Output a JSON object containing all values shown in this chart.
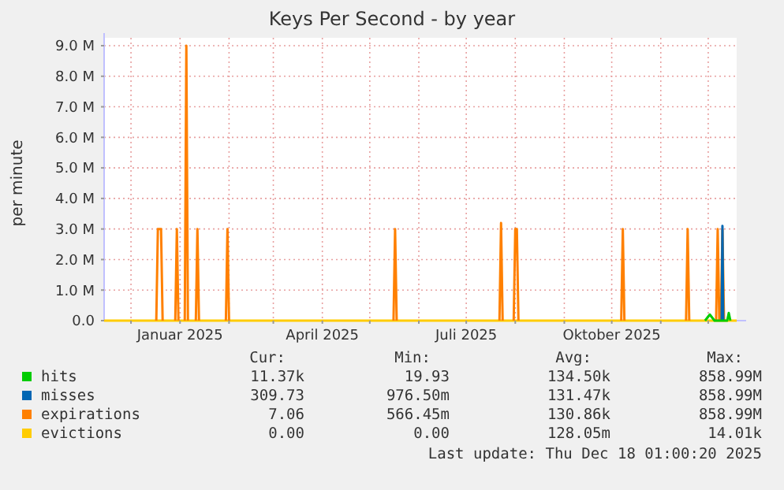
{
  "chart_data": {
    "type": "line",
    "title": "Keys Per Second - by year",
    "ylabel": "per minute",
    "xlim": [
      "2024-11-14",
      "2025-12-19"
    ],
    "xticks": [
      {
        "value": "2024-12-01",
        "label": null
      },
      {
        "value": "2025-01-01",
        "label": "Januar 2025"
      },
      {
        "value": "2025-02-01",
        "label": null
      },
      {
        "value": "2025-03-01",
        "label": null
      },
      {
        "value": "2025-04-01",
        "label": "April 2025"
      },
      {
        "value": "2025-05-01",
        "label": null
      },
      {
        "value": "2025-06-01",
        "label": null
      },
      {
        "value": "2025-07-01",
        "label": "Juli 2025"
      },
      {
        "value": "2025-08-01",
        "label": null
      },
      {
        "value": "2025-09-01",
        "label": null
      },
      {
        "value": "2025-10-01",
        "label": "Oktober 2025"
      },
      {
        "value": "2025-11-01",
        "label": null
      },
      {
        "value": "2025-12-01",
        "label": null
      }
    ],
    "ylim": [
      0,
      9000000
    ],
    "yticks": [
      {
        "value": 0,
        "label": "0.0"
      },
      {
        "value": 1000000,
        "label": "1.0 M"
      },
      {
        "value": 2000000,
        "label": "2.0 M"
      },
      {
        "value": 3000000,
        "label": "3.0 M"
      },
      {
        "value": 4000000,
        "label": "4.0 M"
      },
      {
        "value": 5000000,
        "label": "5.0 M"
      },
      {
        "value": 6000000,
        "label": "6.0 M"
      },
      {
        "value": 7000000,
        "label": "7.0 M"
      },
      {
        "value": 8000000,
        "label": "8.0 M"
      },
      {
        "value": 9000000,
        "label": "9.0 M"
      }
    ],
    "grid": true,
    "legend": "bottom",
    "series": [
      {
        "name": "hits",
        "color": "#00cc00",
        "x": [
          "2025-11-29",
          "2025-12-02",
          "2025-12-05",
          "2025-12-13",
          "2025-12-14",
          "2025-12-15"
        ],
        "values": [
          0,
          200000,
          0,
          0,
          250000,
          0
        ]
      },
      {
        "name": "misses",
        "color": "#0066b3",
        "x": [
          "2025-12-09T12:00",
          "2025-12-10",
          "2025-12-10T12:00"
        ],
        "values": [
          0,
          3100000,
          0
        ]
      },
      {
        "name": "expirations",
        "color": "#ff8000",
        "x": [
          "2024-12-17",
          "2024-12-18",
          "2024-12-20",
          "2024-12-21",
          "2024-12-25",
          "2024-12-29",
          "2024-12-30",
          "2024-12-31",
          "2025-01-02",
          "2025-01-04",
          "2025-01-05",
          "2025-01-06",
          "2025-01-08",
          "2025-01-11",
          "2025-01-12",
          "2025-01-13",
          "2025-01-20",
          "2025-01-30",
          "2025-01-31",
          "2025-02-01",
          "2025-03-01",
          "2025-05-16",
          "2025-05-17",
          "2025-05-18",
          "2025-06-01",
          "2025-07-22",
          "2025-07-23",
          "2025-07-24",
          "2025-07-28",
          "2025-07-31",
          "2025-08-01",
          "2025-08-02",
          "2025-08-03",
          "2025-09-01",
          "2025-10-07",
          "2025-10-08",
          "2025-10-09",
          "2025-11-01",
          "2025-11-17",
          "2025-11-18",
          "2025-11-19",
          "2025-11-25",
          "2025-12-06",
          "2025-12-07",
          "2025-12-08",
          "2025-12-08T12:00",
          "2025-12-09",
          "2025-12-10",
          "2025-12-11"
        ],
        "values": [
          0,
          3000000,
          3000000,
          0,
          null,
          0,
          3000000,
          0,
          null,
          0,
          9000000,
          0,
          null,
          0,
          3000000,
          0,
          null,
          0,
          3000000,
          0,
          null,
          0,
          3000000,
          0,
          null,
          0,
          3200000,
          0,
          null,
          0,
          3000000,
          3000000,
          0,
          null,
          0,
          3000000,
          0,
          null,
          0,
          3000000,
          0,
          null,
          0,
          3000000,
          0,
          null,
          0,
          3000000,
          0
        ]
      },
      {
        "name": "evictions",
        "color": "#ffcc00",
        "x": [
          "2024-11-14",
          "2025-12-19"
        ],
        "values": [
          0,
          0
        ]
      }
    ],
    "annotations": [
      "Cur:",
      "Min:",
      "Avg:",
      "Max:",
      "11.37k",
      "19.93",
      "134.50k",
      "858.99M",
      "309.73",
      "976.50m",
      "131.47k",
      "858.99M",
      "7.06",
      "566.45m",
      "130.86k",
      "858.99M",
      "0.00",
      "0.00",
      "128.05m",
      "14.01k",
      "Last update: Thu Dec 18 01:00:20 2025"
    ]
  }
}
